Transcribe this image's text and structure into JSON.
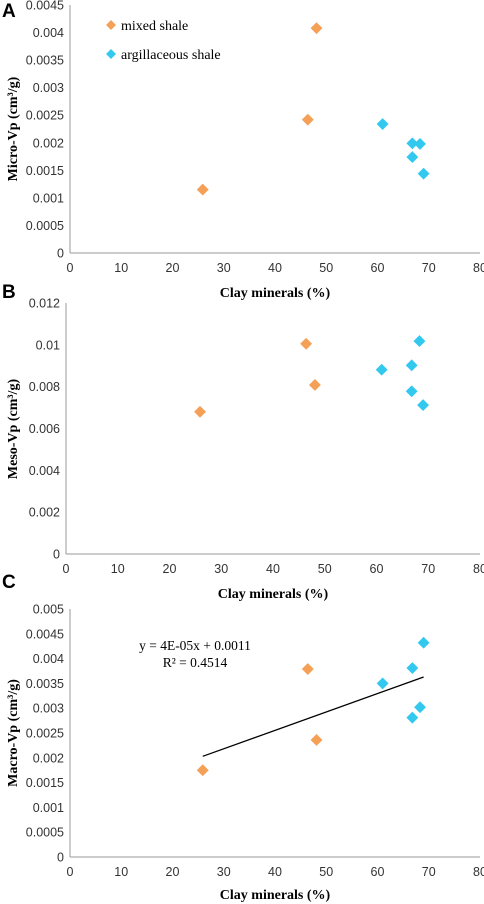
{
  "colors": {
    "mixed_shale": "#F4A057",
    "argillaceous_shale": "#33C9EF",
    "trendline": "#000000",
    "axis": "#9a9a9a"
  },
  "chart_data": [
    {
      "panel": "A",
      "type": "scatter",
      "xlabel": "Clay minerals (%)",
      "ylabel": "Micro-Vp (cm³/g)",
      "xlim": [
        0,
        80
      ],
      "ylim": [
        0,
        0.0045
      ],
      "xticks": [
        "0",
        "10",
        "20",
        "30",
        "40",
        "50",
        "60",
        "70",
        "80"
      ],
      "yticks": [
        "0",
        "0.0005",
        "0.001",
        "0.0015",
        "0.002",
        "0.0025",
        "0.003",
        "0.0035",
        "0.004",
        "0.0045"
      ],
      "legend": [
        "mixed shale",
        "argillaceous shale"
      ],
      "legend_position": "top-left",
      "grid": false,
      "series": [
        {
          "name": "mixed shale",
          "color_key": "mixed_shale",
          "points": [
            [
              25.9,
              0.00115
            ],
            [
              46.4,
              0.00242
            ],
            [
              48.1,
              0.00408
            ]
          ]
        },
        {
          "name": "argillaceous shale",
          "color_key": "argillaceous_shale",
          "points": [
            [
              61,
              0.00234
            ],
            [
              66.8,
              0.00199
            ],
            [
              66.8,
              0.00174
            ],
            [
              68.3,
              0.00198
            ],
            [
              69,
              0.00144
            ]
          ]
        }
      ]
    },
    {
      "panel": "B",
      "type": "scatter",
      "xlabel": "Clay minerals (%)",
      "ylabel": "Meso-Vp (cm³/g)",
      "xlim": [
        0,
        80
      ],
      "ylim": [
        0,
        0.012
      ],
      "xticks": [
        "0",
        "10",
        "20",
        "30",
        "40",
        "50",
        "60",
        "70",
        "80"
      ],
      "yticks": [
        "0",
        "0.002",
        "0.004",
        "0.006",
        "0.008",
        "0.01",
        "0.012"
      ],
      "grid": false,
      "series": [
        {
          "name": "mixed shale",
          "color_key": "mixed_shale",
          "points": [
            [
              25.9,
              0.0068
            ],
            [
              46.4,
              0.01005
            ],
            [
              48.1,
              0.00808
            ]
          ]
        },
        {
          "name": "argillaceous shale",
          "color_key": "argillaceous_shale",
          "points": [
            [
              61,
              0.00881
            ],
            [
              66.8,
              0.00902
            ],
            [
              66.8,
              0.00778
            ],
            [
              68.3,
              0.01018
            ],
            [
              69,
              0.00712
            ]
          ]
        }
      ]
    },
    {
      "panel": "C",
      "type": "scatter",
      "xlabel": "Clay minerals (%)",
      "ylabel": "Macro-Vp (cm³/g)",
      "xlim": [
        0,
        80
      ],
      "ylim": [
        0,
        0.005
      ],
      "xticks": [
        "0",
        "10",
        "20",
        "30",
        "40",
        "50",
        "60",
        "70",
        "80"
      ],
      "yticks": [
        "0",
        "0.0005",
        "0.001",
        "0.0015",
        "0.002",
        "0.0025",
        "0.003",
        "0.0035",
        "0.004",
        "0.0045",
        "0.005"
      ],
      "grid": false,
      "series": [
        {
          "name": "mixed shale",
          "color_key": "mixed_shale",
          "points": [
            [
              25.9,
              0.00175
            ],
            [
              46.4,
              0.00379
            ],
            [
              48.1,
              0.00236
            ]
          ]
        },
        {
          "name": "argillaceous shale",
          "color_key": "argillaceous_shale",
          "points": [
            [
              61,
              0.0035
            ],
            [
              66.8,
              0.00381
            ],
            [
              66.8,
              0.00281
            ],
            [
              68.3,
              0.00302
            ],
            [
              69,
              0.00432
            ]
          ]
        }
      ],
      "trendline": {
        "type": "linear",
        "x_range": [
          25.9,
          69
        ],
        "y_at_start": 0.00203,
        "y_at_end": 0.00363
      },
      "annotations": [
        "y = 4E-05x + 0.0011",
        "R² = 0.4514"
      ]
    }
  ]
}
